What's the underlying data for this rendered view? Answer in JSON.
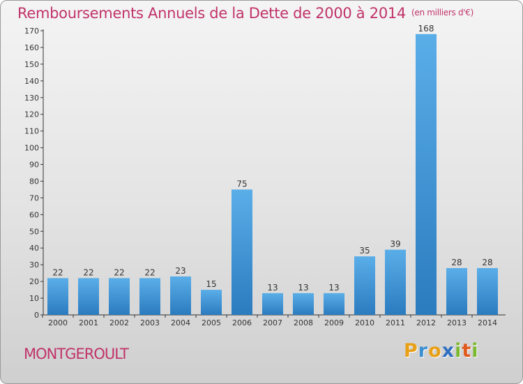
{
  "title": "Remboursements Annuels de la Dette de 2000 à 2014",
  "unit": "(en milliers d'€)",
  "commune": "MONTGEROULT",
  "logo": {
    "text": "Proxiti",
    "letters": [
      "P",
      "r",
      "o",
      "x",
      "i",
      "t",
      "i"
    ]
  },
  "colors": {
    "bar_light": "#5aaee8",
    "bar_dark": "#2b7bbf",
    "title": "#c0336a"
  },
  "chart_data": {
    "type": "bar",
    "title": "Remboursements Annuels de la Dette de 2000 à 2014",
    "xlabel": "",
    "ylabel": "",
    "categories": [
      "2000",
      "2001",
      "2002",
      "2003",
      "2004",
      "2005",
      "2006",
      "2007",
      "2008",
      "2009",
      "2010",
      "2011",
      "2012",
      "2013",
      "2014"
    ],
    "values": [
      22,
      22,
      22,
      22,
      23,
      15,
      75,
      13,
      13,
      13,
      35,
      39,
      168,
      28,
      28
    ],
    "ylim": [
      0,
      170
    ],
    "yticks": [
      0,
      10,
      20,
      30,
      40,
      50,
      60,
      70,
      80,
      90,
      100,
      110,
      120,
      130,
      140,
      150,
      160,
      170
    ],
    "grid": false,
    "legend": "none"
  }
}
